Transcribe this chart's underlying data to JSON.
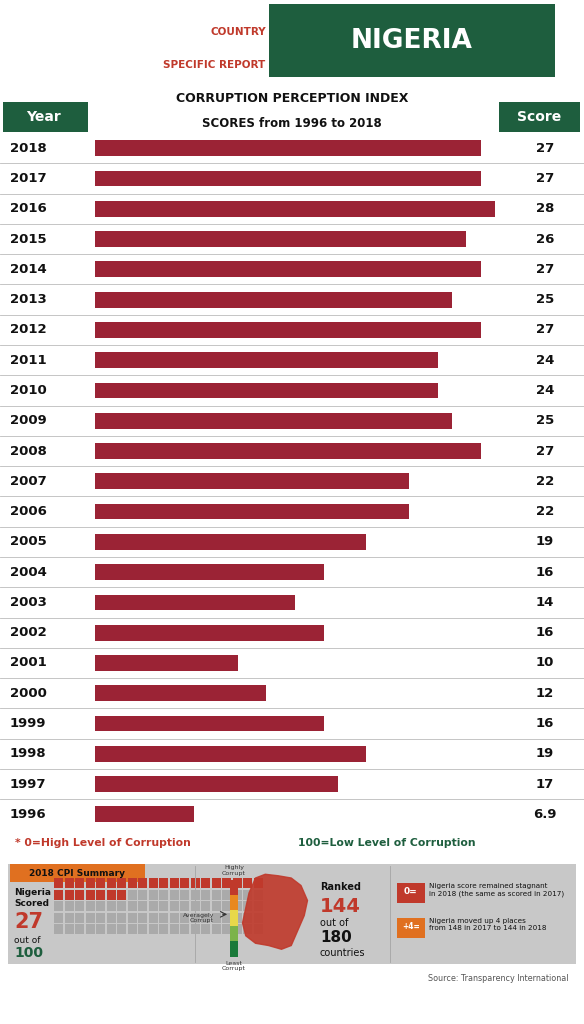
{
  "years": [
    2018,
    2017,
    2016,
    2015,
    2014,
    2013,
    2012,
    2011,
    2010,
    2009,
    2008,
    2007,
    2006,
    2005,
    2004,
    2003,
    2002,
    2001,
    2000,
    1999,
    1998,
    1997,
    1996
  ],
  "scores": [
    27,
    27,
    28,
    26,
    27,
    25,
    27,
    24,
    24,
    25,
    27,
    22,
    22,
    19,
    16,
    14,
    16,
    10,
    12,
    16,
    19,
    17,
    6.9
  ],
  "bar_color": "#9B2335",
  "bg_color": "#FFFFFF",
  "dark_green": "#1E5E3E",
  "red_label": "#C0392B",
  "orange": "#E07020",
  "gray_bg": "#C8C8C8",
  "line_color": "#BBBBBB",
  "max_score": 28.0
}
